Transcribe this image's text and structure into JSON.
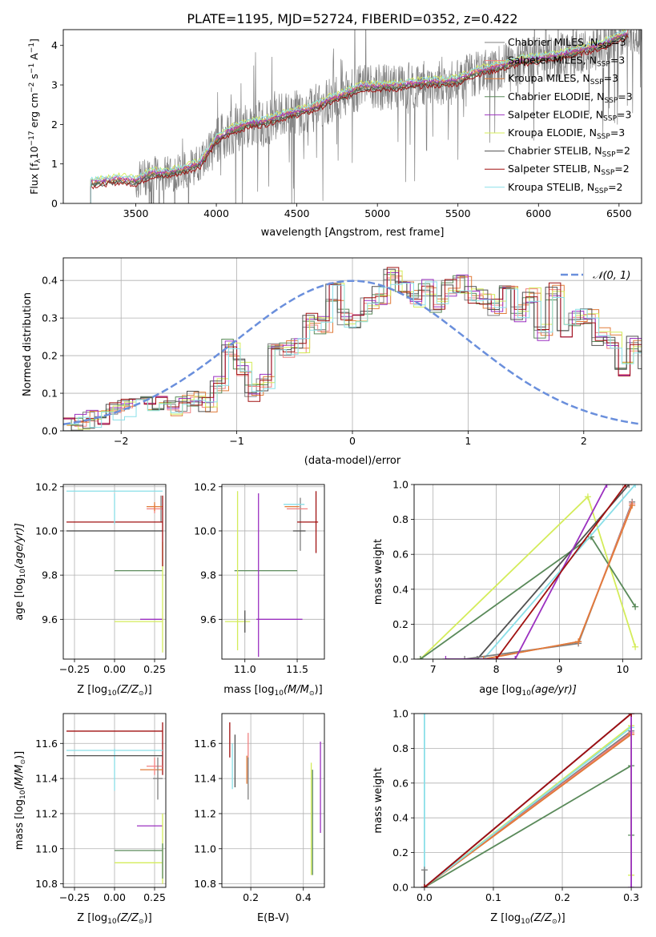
{
  "figure_title": "PLATE=1195, MJD=52724, FIBERID=0352, z=0.422",
  "colors": {
    "chabrier_miles": "#7f7f7f",
    "salpeter_miles": "#f08080",
    "kroupa_miles": "#e07b39",
    "chabrier_elodie": "#5a8a5a",
    "salpeter_elodie": "#9b30c0",
    "kroupa_elodie": "#d4ec5a",
    "chabrier_stelib": "#505050",
    "salpeter_stelib": "#a01010",
    "kroupa_stelib": "#8adfe8",
    "gaussian": "#6a8fdc"
  },
  "chart_data": [
    {
      "id": "spectrum",
      "type": "line",
      "xlabel": "wavelength [Angstrom, rest frame]",
      "ylabel_parts": [
        "Flux [f",
        "λ",
        "10",
        "−17",
        " erg cm",
        "−2",
        " s",
        "−1",
        " A",
        "−1",
        "]"
      ],
      "xlim": [
        3050,
        6640
      ],
      "ylim": [
        0,
        4.4
      ],
      "xticks": [
        3500,
        4000,
        4500,
        5000,
        5500,
        6000,
        6500
      ],
      "yticks": [
        0,
        1,
        2,
        3,
        4
      ],
      "grid": false,
      "legend_placement": "top-right",
      "legend": [
        {
          "base": "Chabrier MILES, N",
          "sub": "SSP",
          "tail": "=3",
          "color_key": "chabrier_miles"
        },
        {
          "base": "Salpeter MILES, N",
          "sub": "SSP",
          "tail": "=3",
          "color_key": "salpeter_miles"
        },
        {
          "base": "Kroupa MILES, N",
          "sub": "SSP",
          "tail": "=3",
          "color_key": "kroupa_miles"
        },
        {
          "base": "Chabrier ELODIE, N",
          "sub": "SSP",
          "tail": "=3",
          "color_key": "chabrier_elodie"
        },
        {
          "base": "Salpeter ELODIE, N",
          "sub": "SSP",
          "tail": "=3",
          "color_key": "salpeter_elodie"
        },
        {
          "base": "Kroupa ELODIE, N",
          "sub": "SSP",
          "tail": "=3",
          "color_key": "kroupa_elodie"
        },
        {
          "base": "Chabrier STELIB, N",
          "sub": "SSP",
          "tail": "=2",
          "color_key": "chabrier_stelib"
        },
        {
          "base": "Salpeter STELIB, N",
          "sub": "SSP",
          "tail": "=2",
          "color_key": "salpeter_stelib"
        },
        {
          "base": "Kroupa STELIB, N",
          "sub": "SSP",
          "tail": "=2",
          "color_key": "kroupa_stelib"
        }
      ],
      "continuum_x": [
        3220,
        3300,
        3400,
        3500,
        3600,
        3700,
        3800,
        3900,
        3950,
        4000,
        4100,
        4200,
        4300,
        4400,
        4500,
        4600,
        4700,
        4800,
        4900,
        5000,
        5100,
        5200,
        5300,
        5400,
        5500,
        5600,
        5700,
        5800,
        5900,
        6000,
        6100,
        6200,
        6300,
        6400,
        6500,
        6560
      ],
      "continuum_y": [
        0.5,
        0.55,
        0.6,
        0.55,
        0.75,
        0.75,
        0.85,
        1.0,
        1.3,
        1.6,
        1.85,
        2.0,
        2.05,
        2.2,
        2.3,
        2.4,
        2.6,
        2.75,
        2.95,
        2.95,
        2.95,
        3.0,
        3.05,
        3.05,
        3.1,
        3.3,
        3.4,
        3.5,
        3.6,
        3.65,
        3.7,
        3.8,
        3.9,
        4.0,
        4.2,
        4.3
      ],
      "model_offsets": [
        0,
        0.06,
        0.02,
        -0.03,
        0.04,
        0.12,
        -0.05,
        -0.08,
        0.1
      ],
      "data_start": 3500,
      "data_end": 6640
    },
    {
      "id": "residual_histogram",
      "type": "histogram",
      "xlabel": "(data-model)/error",
      "ylabel": "Normed distribution",
      "xlim": [
        -2.5,
        2.5
      ],
      "ylim": [
        0,
        0.46
      ],
      "xticks": [
        -2,
        -1,
        0,
        1,
        2
      ],
      "ytick_labels": [
        "0.0",
        "0.1",
        "0.2",
        "0.3",
        "0.4"
      ],
      "yticks": [
        0,
        0.1,
        0.2,
        0.3,
        0.4
      ],
      "grid": true,
      "legend_placement": "top-right",
      "legend_label": "𝒩(0, 1)",
      "bin_width": 0.1,
      "base_heights": [
        0.01,
        0.02,
        0.03,
        0.04,
        0.05,
        0.06,
        0.07,
        0.07,
        0.08,
        0.06,
        0.07,
        0.09,
        0.07,
        0.12,
        0.22,
        0.17,
        0.1,
        0.13,
        0.21,
        0.22,
        0.23,
        0.29,
        0.28,
        0.37,
        0.3,
        0.29,
        0.33,
        0.36,
        0.41,
        0.38,
        0.35,
        0.38,
        0.34,
        0.38,
        0.39,
        0.36,
        0.35,
        0.33,
        0.38,
        0.31,
        0.36,
        0.26,
        0.37,
        0.27,
        0.3,
        0.3,
        0.25,
        0.24,
        0.17,
        0.23,
        0.19,
        0.18,
        0.14,
        0.17,
        0.11,
        0.12,
        0.1,
        0.08,
        0.1,
        0.07,
        0.06,
        0.05,
        0.05,
        0.04,
        0.04,
        0.04,
        0.04,
        0.06,
        0.04
      ],
      "base_start": -2.5,
      "gaussian_mu": 0,
      "gaussian_sigma": 1
    },
    {
      "id": "age_vs_z",
      "type": "errorbar",
      "xlabel": "Z [log",
      "xlabel_sub": "10",
      "xlabel_rest": "(Z/Z",
      "xlabel_tail": ")]",
      "ylabel": "age  [log",
      "ylabel_sub": "10",
      "ylabel_rest": "(age/yr)]",
      "xlim": [
        -0.32,
        0.32
      ],
      "ylim": [
        9.42,
        10.21
      ],
      "xtick_labels": [
        "−0.25",
        "0.00",
        "0.25"
      ],
      "xticks": [
        -0.25,
        0,
        0.25
      ],
      "ytick_labels": [
        "9.6",
        "9.8",
        "10.0",
        "10.2"
      ],
      "yticks": [
        9.6,
        9.8,
        10.0,
        10.2
      ],
      "grid": true,
      "points": [
        {
          "c": "chabrier_miles",
          "x": 0.29,
          "xe": 0.0,
          "y": 10.1,
          "ye": 0.06
        },
        {
          "c": "salpeter_miles",
          "x": 0.25,
          "xe": 0.05,
          "y": 10.1,
          "ye": 0.02
        },
        {
          "c": "kroupa_miles",
          "x": 0.25,
          "xe": 0.05,
          "y": 10.11,
          "ye": 0.02
        },
        {
          "c": "chabrier_elodie",
          "x": 0.15,
          "xe": 0.15,
          "y": 9.82,
          "ye": 0.0
        },
        {
          "c": "salpeter_elodie",
          "x": 0.23,
          "xe": 0.07,
          "y": 9.6,
          "ye": 0.0
        },
        {
          "c": "kroupa_elodie",
          "x": 0.15,
          "xe": 0.15,
          "y": 9.59,
          "ye": 0.0
        },
        {
          "c": "kroupa_elodie",
          "x": 0.3,
          "xe": 0.0,
          "y": 9.7,
          "ye": 0.25
        },
        {
          "c": "chabrier_stelib",
          "x": 0.0,
          "xe": 0.3,
          "y": 10.0,
          "ye": 0.0
        },
        {
          "c": "salpeter_stelib",
          "x": 0.0,
          "xe": 0.3,
          "y": 10.04,
          "ye": 0.0
        },
        {
          "c": "salpeter_stelib",
          "x": 0.3,
          "xe": 0.0,
          "y": 10.0,
          "ye": 0.16
        },
        {
          "c": "kroupa_stelib",
          "x": 0.0,
          "xe": 0.3,
          "y": 10.18,
          "ye": 0.0
        },
        {
          "c": "kroupa_stelib",
          "x": 0.0,
          "xe": 0.0,
          "y": 10.1,
          "ye": 0.07
        }
      ]
    },
    {
      "id": "age_vs_mass",
      "type": "errorbar",
      "xlabel": "mass [log",
      "xlabel_sub": "10",
      "xlabel_rest": "(M/M",
      "xlabel_tail": ")]",
      "xlim": [
        10.78,
        11.76
      ],
      "ylim": [
        9.42,
        10.21
      ],
      "xtick_labels": [
        "11.0",
        "11.5"
      ],
      "xticks": [
        11.0,
        11.5
      ],
      "ytick_labels": [
        "9.6",
        "9.8",
        "10.0",
        "10.2"
      ],
      "yticks": [
        9.6,
        9.8,
        10.0,
        10.2
      ],
      "grid": true,
      "points": [
        {
          "c": "chabrier_miles",
          "x": 11.53,
          "xe": 0.0,
          "y": 10.03,
          "ye": 0.12
        },
        {
          "c": "salpeter_miles",
          "x": 11.5,
          "xe": 0.1,
          "y": 10.1,
          "ye": 0.0
        },
        {
          "c": "kroupa_miles",
          "x": 11.45,
          "xe": 0.07,
          "y": 10.11,
          "ye": 0.0
        },
        {
          "c": "chabrier_elodie",
          "x": 11.2,
          "xe": 0.3,
          "y": 9.82,
          "ye": 0.0
        },
        {
          "c": "salpeter_elodie",
          "x": 11.13,
          "xe": 0.0,
          "y": 9.8,
          "ye": 0.37
        },
        {
          "c": "salpeter_elodie",
          "x": 11.33,
          "xe": 0.22,
          "y": 9.6,
          "ye": 0.0
        },
        {
          "c": "kroupa_elodie",
          "x": 10.93,
          "xe": 0.0,
          "y": 9.82,
          "ye": 0.36
        },
        {
          "c": "kroupa_elodie",
          "x": 10.93,
          "xe": 0.12,
          "y": 9.59,
          "ye": 0.0
        },
        {
          "c": "chabrier_stelib",
          "x": 11.52,
          "xe": 0.06,
          "y": 10.0,
          "ye": 0.0
        },
        {
          "c": "salpeter_stelib",
          "x": 11.68,
          "xe": 0.0,
          "y": 10.04,
          "ye": 0.14
        },
        {
          "c": "salpeter_stelib",
          "x": 11.6,
          "xe": 0.1,
          "y": 10.04,
          "ye": 0.0
        },
        {
          "c": "kroupa_stelib",
          "x": 11.47,
          "xe": 0.1,
          "y": 10.12,
          "ye": 0.0
        },
        {
          "c": "chabrier_stelib",
          "x": 11.0,
          "xe": 0.0,
          "y": 9.59,
          "ye": 0.05
        }
      ]
    },
    {
      "id": "mass_weight_vs_age",
      "type": "line",
      "xlabel": "age  [log",
      "xlabel_sub": "10",
      "xlabel_rest": "(age/yr)]",
      "ylabel": "mass weight",
      "xlim": [
        6.7,
        10.3
      ],
      "ylim": [
        0,
        1.0
      ],
      "xticks": [
        7,
        8,
        9,
        10
      ],
      "ytick_labels": [
        "0.0",
        "0.2",
        "0.4",
        "0.6",
        "0.8",
        "1.0"
      ],
      "yticks": [
        0,
        0.2,
        0.4,
        0.6,
        0.8,
        1.0
      ],
      "grid": true,
      "series": [
        {
          "c": "kroupa_elodie",
          "x": [
            6.8,
            9.45,
            10.2
          ],
          "y": [
            0.0,
            0.93,
            0.07
          ]
        },
        {
          "c": "chabrier_elodie",
          "x": [
            6.8,
            9.5,
            10.2
          ],
          "y": [
            0.0,
            0.7,
            0.3
          ]
        },
        {
          "c": "kroupa_stelib",
          "x": [
            7.8,
            10.2
          ],
          "y": [
            0.0,
            1.0
          ]
        },
        {
          "c": "chabrier_stelib",
          "x": [
            7.7,
            10.1
          ],
          "y": [
            0.0,
            1.0
          ]
        },
        {
          "c": "chabrier_miles",
          "x": [
            7.5,
            9.3,
            10.15
          ],
          "y": [
            0.0,
            0.09,
            0.9
          ]
        },
        {
          "c": "salpeter_miles",
          "x": [
            7.8,
            9.3,
            10.15
          ],
          "y": [
            0.0,
            0.1,
            0.89
          ]
        },
        {
          "c": "kroupa_miles",
          "x": [
            7.8,
            9.3,
            10.15
          ],
          "y": [
            0.0,
            0.1,
            0.88
          ]
        },
        {
          "c": "salpeter_elodie",
          "x": [
            7.2,
            8.3,
            9.75
          ],
          "y": [
            0.0,
            0.0,
            1.0
          ]
        },
        {
          "c": "salpeter_stelib",
          "x": [
            8.0,
            10.05
          ],
          "y": [
            0.0,
            1.0
          ]
        }
      ]
    },
    {
      "id": "mass_vs_z",
      "type": "errorbar",
      "xlabel": "Z [log",
      "xlabel_sub": "10",
      "xlabel_rest": "(Z/Z",
      "xlabel_tail": ")]",
      "ylabel": "mass [log",
      "ylabel_sub": "10",
      "ylabel_rest": "(M/M",
      "ylabel_tail": ")]",
      "xlim": [
        -0.32,
        0.32
      ],
      "ylim": [
        10.78,
        11.77
      ],
      "xtick_labels": [
        "−0.25",
        "0.00",
        "0.25"
      ],
      "xticks": [
        -0.25,
        0,
        0.25
      ],
      "ytick_labels": [
        "10.8",
        "11.0",
        "11.2",
        "11.4",
        "11.6"
      ],
      "yticks": [
        10.8,
        11.0,
        11.2,
        11.4,
        11.6
      ],
      "grid": true,
      "points": [
        {
          "c": "salpeter_stelib",
          "x": 0.0,
          "xe": 0.3,
          "y": 11.67,
          "ye": 0.0
        },
        {
          "c": "salpeter_stelib",
          "x": 0.3,
          "xe": 0.0,
          "y": 11.57,
          "ye": 0.15
        },
        {
          "c": "kroupa_stelib",
          "x": 0.0,
          "xe": 0.3,
          "y": 11.56,
          "ye": 0.0
        },
        {
          "c": "kroupa_stelib",
          "x": 0.0,
          "xe": 0.0,
          "y": 11.45,
          "ye": 0.12
        },
        {
          "c": "chabrier_stelib",
          "x": 0.0,
          "xe": 0.3,
          "y": 11.53,
          "ye": 0.0
        },
        {
          "c": "kroupa_miles",
          "x": 0.23,
          "xe": 0.07,
          "y": 11.45,
          "ye": 0.0
        },
        {
          "c": "salpeter_miles",
          "x": 0.25,
          "xe": 0.05,
          "y": 11.47,
          "ye": 0.05
        },
        {
          "c": "chabrier_miles",
          "x": 0.27,
          "xe": 0.03,
          "y": 11.4,
          "ye": 0.12
        },
        {
          "c": "salpeter_elodie",
          "x": 0.22,
          "xe": 0.08,
          "y": 11.13,
          "ye": 0.0
        },
        {
          "c": "chabrier_elodie",
          "x": 0.15,
          "xe": 0.15,
          "y": 10.99,
          "ye": 0.0
        },
        {
          "c": "kroupa_elodie",
          "x": 0.15,
          "xe": 0.15,
          "y": 10.92,
          "ye": 0.0
        },
        {
          "c": "kroupa_elodie",
          "x": 0.3,
          "xe": 0.0,
          "y": 11.0,
          "ye": 0.2
        },
        {
          "c": "chabrier_elodie",
          "x": 0.3,
          "xe": 0.0,
          "y": 10.93,
          "ye": 0.1
        }
      ]
    },
    {
      "id": "mass_vs_ebv",
      "type": "errorbar",
      "xlabel": "E(B-V)",
      "xlim": [
        0.09,
        0.48
      ],
      "ylim": [
        10.78,
        11.77
      ],
      "xtick_labels": [
        "0.2",
        "0.4"
      ],
      "xticks": [
        0.2,
        0.4
      ],
      "ytick_labels": [
        "10.8",
        "11.0",
        "11.2",
        "11.4",
        "11.6"
      ],
      "yticks": [
        10.8,
        11.0,
        11.2,
        11.4,
        11.6
      ],
      "grid": true,
      "points": [
        {
          "c": "salpeter_stelib",
          "x": 0.12,
          "xe": 0.0,
          "y": 11.62,
          "ye": 0.1
        },
        {
          "c": "chabrier_stelib",
          "x": 0.14,
          "xe": 0.0,
          "y": 11.5,
          "ye": 0.15
        },
        {
          "c": "kroupa_stelib",
          "x": 0.13,
          "xe": 0.0,
          "y": 11.47,
          "ye": 0.13
        },
        {
          "c": "salpeter_miles",
          "x": 0.19,
          "xe": 0.0,
          "y": 11.53,
          "ye": 0.13
        },
        {
          "c": "kroupa_miles",
          "x": 0.185,
          "xe": 0.0,
          "y": 11.45,
          "ye": 0.08
        },
        {
          "c": "chabrier_miles",
          "x": 0.19,
          "xe": 0.0,
          "y": 11.4,
          "ye": 0.12
        },
        {
          "c": "kroupa_elodie",
          "x": 0.43,
          "xe": 0.0,
          "y": 11.17,
          "ye": 0.32
        },
        {
          "c": "chabrier_elodie",
          "x": 0.435,
          "xe": 0.0,
          "y": 11.15,
          "ye": 0.3
        },
        {
          "c": "salpeter_elodie",
          "x": 0.465,
          "xe": 0.0,
          "y": 11.35,
          "ye": 0.26
        }
      ]
    },
    {
      "id": "mass_weight_vs_z",
      "type": "line",
      "xlabel": "Z [log",
      "xlabel_sub": "10",
      "xlabel_rest": "(Z/Z",
      "xlabel_tail": ")]",
      "ylabel": "mass weight",
      "xlim": [
        -0.015,
        0.315
      ],
      "ylim": [
        0,
        1.0
      ],
      "xtick_labels": [
        "0.0",
        "0.1",
        "0.2",
        "0.3"
      ],
      "xticks": [
        0,
        0.1,
        0.2,
        0.3
      ],
      "ytick_labels": [
        "0.0",
        "0.2",
        "0.4",
        "0.6",
        "0.8",
        "1.0"
      ],
      "yticks": [
        0,
        0.2,
        0.4,
        0.6,
        0.8,
        1.0
      ],
      "grid": true,
      "series": [
        {
          "c": "kroupa_stelib",
          "x": [
            0.0,
            0.0
          ],
          "y": [
            1.0,
            0.0
          ]
        },
        {
          "c": "chabrier_miles",
          "x": [
            0.0,
            0.0
          ],
          "y": [
            0.1,
            0.0
          ]
        },
        {
          "c": "chabrier_elodie",
          "x": [
            0.0,
            0.3,
            0.3
          ],
          "y": [
            0.0,
            0.7,
            0.3
          ]
        },
        {
          "c": "chabrier_miles",
          "x": [
            0.0,
            0.3
          ],
          "y": [
            0.0,
            0.9
          ]
        },
        {
          "c": "salpeter_miles",
          "x": [
            0.0,
            0.3
          ],
          "y": [
            0.0,
            0.89
          ]
        },
        {
          "c": "kroupa_miles",
          "x": [
            0.0,
            0.3
          ],
          "y": [
            0.0,
            0.88
          ]
        },
        {
          "c": "kroupa_elodie",
          "x": [
            0.0,
            0.3,
            0.3
          ],
          "y": [
            0.0,
            0.93,
            0.07
          ]
        },
        {
          "c": "kroupa_stelib",
          "x": [
            0.0,
            0.3
          ],
          "y": [
            0.0,
            0.92
          ]
        },
        {
          "c": "salpeter_elodie",
          "x": [
            0.0,
            0.3,
            0.3
          ],
          "y": [
            0.0,
            1.0,
            0.0
          ]
        },
        {
          "c": "chabrier_stelib",
          "x": [
            0.0,
            0.3
          ],
          "y": [
            0.0,
            1.0
          ]
        },
        {
          "c": "salpeter_stelib",
          "x": [
            0.0,
            0.3
          ],
          "y": [
            0.0,
            1.0
          ]
        }
      ]
    }
  ]
}
